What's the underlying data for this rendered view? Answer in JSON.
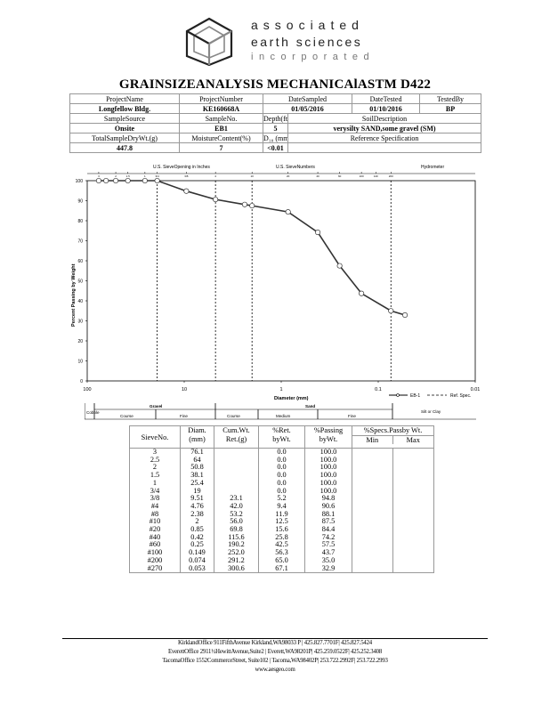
{
  "logo": {
    "line1": "associated",
    "line2": "earth sciences",
    "line3": "incorporated"
  },
  "title": "GRAINSIZEANALYSIS  MECHANICAlASTM D422",
  "info": {
    "project_name_label": "ProjectName",
    "project_name": "Longfellow Bldg.",
    "project_number_label": "ProjectNumber",
    "project_number": "KE160668A",
    "date_sampled_label": "DateSampled",
    "date_sampled": "01/05/2016",
    "date_tested_label": "DateTested",
    "date_tested": "01/10/2016",
    "tested_by_label": "TestedBy",
    "tested_by": "BP",
    "sample_source_label": "SampleSource",
    "sample_source": "Onsite",
    "sample_no_label": "SampleNo.",
    "sample_no": "EB1",
    "depth_label": "Depth(ft)",
    "depth": "5",
    "soil_desc_label": "SoilDescription",
    "soil_desc": "verysilty SAND,some gravel (SM)",
    "total_dry_label": "TotalSampleDryWt.(g)",
    "total_dry": "447.8",
    "moisture_label": "MoistureContent(%)",
    "moisture": "7",
    "d10_label": "D₁₀ (mm)",
    "d10": "<0.01",
    "ref_spec_label": "Reference Specification",
    "ref_spec": ""
  },
  "chart_data": {
    "type": "line",
    "x_scale": "log",
    "xlim": [
      100,
      0.01
    ],
    "ylim": [
      0,
      100
    ],
    "xlabel": "Diameter (mm)",
    "ylabel": "Percent Passing by Weight",
    "x_tick_labels": [
      "100",
      "10",
      "1",
      "0.1",
      "0.01"
    ],
    "x_ticks": [
      100,
      10,
      1,
      0.1,
      0.01
    ],
    "y_ticks": [
      0,
      10,
      20,
      30,
      40,
      50,
      60,
      70,
      80,
      90,
      100
    ],
    "top_labels": {
      "sieve_opening": "U.S. SieveOpening  in Inches",
      "sieve_numbers": "U.S. SieveNumbers",
      "hydrometer": "Hydrometer"
    },
    "top_tick_labels": [
      "3",
      "2",
      "1.5",
      "1",
      "3/4",
      "3/8",
      "4",
      "10",
      "20",
      "40",
      "60",
      "100",
      "140",
      "200"
    ],
    "dashed_lines_x": [
      4.76,
      19,
      2,
      0.074
    ],
    "legend": {
      "series": "EB-1",
      "ref": "Ref. Spec."
    },
    "series": [
      {
        "name": "EB-1",
        "x": [
          76.1,
          64,
          50.8,
          38.1,
          25.4,
          19,
          9.51,
          4.76,
          2.38,
          2,
          0.85,
          0.42,
          0.25,
          0.149,
          0.074,
          0.053
        ],
        "y": [
          100.0,
          100.0,
          100.0,
          100.0,
          100.0,
          100.0,
          94.8,
          90.6,
          88.1,
          87.5,
          84.4,
          74.2,
          57.5,
          43.7,
          35.0,
          32.9
        ]
      }
    ]
  },
  "classification": {
    "cobble": "Cobble",
    "gravel": "Gravel",
    "sand": "Sand",
    "silt_clay": "Silt or Clay",
    "coarse1": "Course",
    "fine1": "Fine",
    "coarse2": "Course",
    "medium": "Medium",
    "fine2": "Fine"
  },
  "sieve_table": {
    "headers": {
      "sieve_no": "SieveNo.",
      "diam": "Diam.",
      "diam_unit": "(mm)",
      "cum": "Cum.Wt.",
      "cum_unit": "Ret.(g)",
      "ret": "%Ret.",
      "ret_unit": "byWt.",
      "pass": "%Passing",
      "pass_unit": "byWt.",
      "specs": "%Specs.Passby Wt.",
      "min": "Min",
      "max": "Max"
    },
    "rows": [
      {
        "sieve": "3",
        "diam": "76.1",
        "cum": "",
        "ret": "0.0",
        "pass": "100.0"
      },
      {
        "sieve": "2.5",
        "diam": "64",
        "cum": "",
        "ret": "0.0",
        "pass": "100.0"
      },
      {
        "sieve": "2",
        "diam": "50.8",
        "cum": "",
        "ret": "0.0",
        "pass": "100.0"
      },
      {
        "sieve": "1.5",
        "diam": "38.1",
        "cum": "",
        "ret": "0.0",
        "pass": "100.0"
      },
      {
        "sieve": "1",
        "diam": "25.4",
        "cum": "",
        "ret": "0.0",
        "pass": "100.0"
      },
      {
        "sieve": "3/4",
        "diam": "19",
        "cum": "",
        "ret": "0.0",
        "pass": "100.0"
      },
      {
        "sieve": "3/8",
        "diam": "9.51",
        "cum": "23.1",
        "ret": "5.2",
        "pass": "94.8"
      },
      {
        "sieve": "#4",
        "diam": "4.76",
        "cum": "42.0",
        "ret": "9.4",
        "pass": "90.6"
      },
      {
        "sieve": "#8",
        "diam": "2.38",
        "cum": "53.2",
        "ret": "11.9",
        "pass": "88.1"
      },
      {
        "sieve": "#10",
        "diam": "2",
        "cum": "56.0",
        "ret": "12.5",
        "pass": "87.5"
      },
      {
        "sieve": "#20",
        "diam": "0.85",
        "cum": "69.8",
        "ret": "15.6",
        "pass": "84.4"
      },
      {
        "sieve": "#40",
        "diam": "0.42",
        "cum": "115.6",
        "ret": "25.8",
        "pass": "74.2"
      },
      {
        "sieve": "#60",
        "diam": "0.25",
        "cum": "190.2",
        "ret": "42.5",
        "pass": "57.5"
      },
      {
        "sieve": "#100",
        "diam": "0.149",
        "cum": "252.0",
        "ret": "56.3",
        "pass": "43.7"
      },
      {
        "sieve": "#200",
        "diam": "0.074",
        "cum": "291.2",
        "ret": "65.0",
        "pass": "35.0"
      },
      {
        "sieve": "#270",
        "diam": "0.053",
        "cum": "300.6",
        "ret": "67.1",
        "pass": "32.9"
      }
    ]
  },
  "footer": {
    "kirkland": "KirklandOffice  911FifthAvenue  Kirkland,WA98033 P | 425.827.7701F| 425.827.5424",
    "everett": "EverettOffice  2911½HewittAvenue,Suite2 | Everett,WA98201P| 425.259.0522F| 425.252.3408",
    "tacoma": "TacomaOffice  1552CommerceStreet, Suite102 | Tacoma,WA98402P| 253.722.2992F| 253.722.2993",
    "website": "www.aesgeo.com"
  }
}
